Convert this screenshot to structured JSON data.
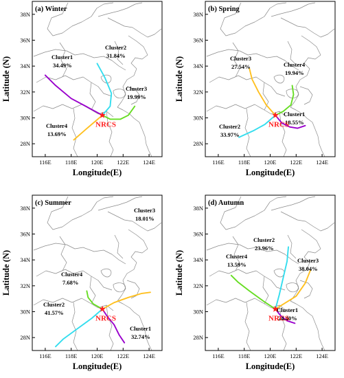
{
  "colors": {
    "nrcs_label": "#ff2020",
    "purple": "#9900cc",
    "cyan": "#33ddee",
    "green": "#66dd22",
    "orange": "#ffc020",
    "boundary": "#8a8a8a"
  },
  "axes": {
    "x_ticks": [
      "116E",
      "118E",
      "120E",
      "122E",
      "124E"
    ],
    "y_ticks": [
      "38N",
      "36N",
      "34N",
      "32N",
      "30N",
      "28N"
    ],
    "x_label": "Longitude(E)",
    "y_label": "Latitude (N)",
    "lon_range": [
      115,
      125
    ],
    "lat_range": [
      27,
      39
    ]
  },
  "site": {
    "label": "NRCS",
    "lon": 120.4,
    "lat": 30.2,
    "marker": "star"
  },
  "panels": [
    {
      "title": "(a) Winter",
      "clusters": [
        {
          "name": "Cluster1",
          "pct": "34.49%",
          "color": "purple",
          "path": [
            [
              120.4,
              30.2
            ],
            [
              119.3,
              30.8
            ],
            [
              118.0,
              31.5
            ],
            [
              116.8,
              32.5
            ],
            [
              116.0,
              33.3
            ]
          ]
        },
        {
          "name": "Cluster2",
          "pct": "31.84%",
          "color": "cyan",
          "path": [
            [
              120.4,
              30.2
            ],
            [
              121.0,
              30.9
            ],
            [
              121.1,
              31.9
            ],
            [
              120.6,
              33.1
            ],
            [
              120.0,
              34.2
            ]
          ]
        },
        {
          "name": "Cluster3",
          "pct": "19.99%",
          "color": "orange",
          "path": [
            [
              120.4,
              30.2
            ],
            [
              119.7,
              29.6
            ],
            [
              119.0,
              29.0
            ],
            [
              118.2,
              28.3
            ]
          ]
        },
        {
          "name": "Cluster4",
          "pct": "13.69%",
          "color": "green",
          "path": [
            [
              120.4,
              30.2
            ],
            [
              121.0,
              29.9
            ],
            [
              121.8,
              29.9
            ],
            [
              122.4,
              30.2
            ],
            [
              122.9,
              30.9
            ]
          ]
        }
      ]
    },
    {
      "title": "(b) Spring",
      "clusters": [
        {
          "name": "Cluster1",
          "pct": "18.55%",
          "color": "purple",
          "path": [
            [
              120.4,
              30.2
            ],
            [
              120.9,
              29.6
            ],
            [
              121.5,
              29.3
            ],
            [
              122.1,
              29.2
            ],
            [
              122.7,
              29.4
            ]
          ]
        },
        {
          "name": "Cluster2",
          "pct": "33.97%",
          "color": "cyan",
          "path": [
            [
              120.4,
              30.2
            ],
            [
              119.6,
              29.5
            ],
            [
              118.7,
              29.0
            ],
            [
              117.6,
              28.5
            ]
          ]
        },
        {
          "name": "Cluster3",
          "pct": "27.54%",
          "color": "orange",
          "path": [
            [
              120.4,
              30.2
            ],
            [
              119.7,
              31.0
            ],
            [
              119.1,
              32.0
            ],
            [
              118.6,
              33.0
            ],
            [
              118.4,
              33.8
            ]
          ]
        },
        {
          "name": "Cluster4",
          "pct": "19.94%",
          "color": "green",
          "path": [
            [
              120.4,
              30.2
            ],
            [
              121.0,
              30.5
            ],
            [
              121.6,
              31.0
            ],
            [
              121.8,
              31.8
            ],
            [
              121.7,
              32.5
            ]
          ]
        }
      ]
    },
    {
      "title": "(c) Summer",
      "clusters": [
        {
          "name": "Cluster1",
          "pct": "32.74%",
          "color": "purple",
          "path": [
            [
              120.4,
              30.2
            ],
            [
              120.8,
              29.6
            ],
            [
              121.3,
              29.0
            ],
            [
              121.7,
              28.2
            ],
            [
              122.1,
              27.6
            ]
          ]
        },
        {
          "name": "Cluster2",
          "pct": "41.57%",
          "color": "cyan",
          "path": [
            [
              120.4,
              30.2
            ],
            [
              119.6,
              29.5
            ],
            [
              118.5,
              28.7
            ],
            [
              117.4,
              27.9
            ],
            [
              116.8,
              27.3
            ]
          ]
        },
        {
          "name": "Cluster3",
          "pct": "18.01%",
          "color": "orange",
          "path": [
            [
              120.4,
              30.2
            ],
            [
              121.3,
              30.7
            ],
            [
              122.4,
              31.1
            ],
            [
              123.4,
              31.4
            ],
            [
              124.1,
              31.5
            ]
          ]
        },
        {
          "name": "Cluster4",
          "pct": "7.68%",
          "color": "green",
          "path": [
            [
              120.4,
              30.2
            ],
            [
              119.7,
              30.6
            ],
            [
              119.3,
              31.1
            ],
            [
              119.2,
              31.6
            ]
          ]
        }
      ]
    },
    {
      "title": "(d) Autumn",
      "clusters": [
        {
          "name": "Cluster1",
          "pct": "24.40%",
          "color": "purple",
          "path": [
            [
              120.4,
              30.2
            ],
            [
              120.8,
              29.7
            ],
            [
              121.3,
              29.3
            ],
            [
              121.9,
              29.1
            ]
          ]
        },
        {
          "name": "Cluster2",
          "pct": "23.96%",
          "color": "cyan",
          "path": [
            [
              120.4,
              30.2
            ],
            [
              120.7,
              31.3
            ],
            [
              121.0,
              32.6
            ],
            [
              121.3,
              33.9
            ],
            [
              121.4,
              35.0
            ]
          ]
        },
        {
          "name": "Cluster3",
          "pct": "38.04%",
          "color": "orange",
          "path": [
            [
              120.4,
              30.2
            ],
            [
              121.2,
              30.7
            ],
            [
              122.0,
              31.2
            ],
            [
              122.7,
              32.2
            ],
            [
              123.1,
              33.2
            ]
          ]
        },
        {
          "name": "Cluster4",
          "pct": "13.59%",
          "color": "green",
          "path": [
            [
              120.4,
              30.2
            ],
            [
              119.5,
              30.8
            ],
            [
              118.4,
              31.6
            ],
            [
              117.5,
              32.3
            ],
            [
              117.0,
              32.8
            ]
          ]
        }
      ]
    }
  ]
}
